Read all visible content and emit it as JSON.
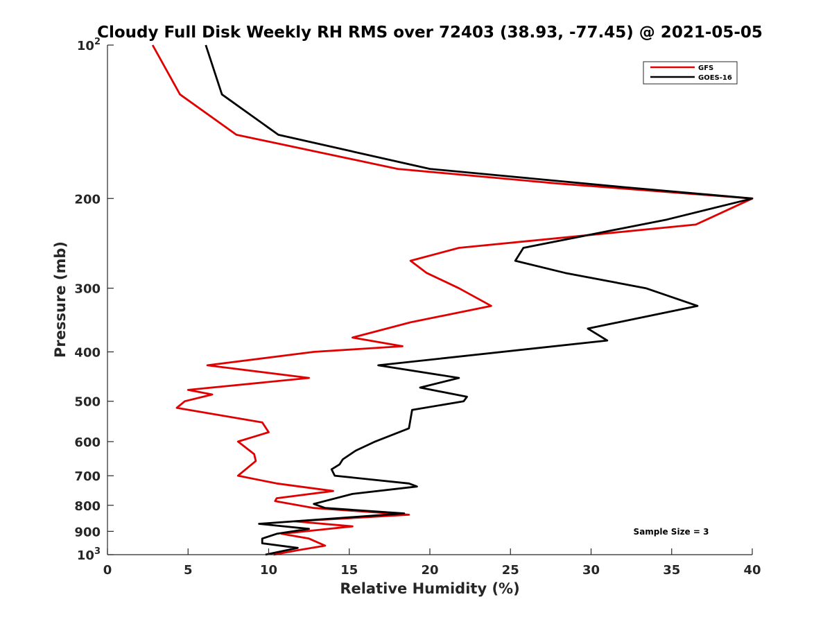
{
  "chart_data": {
    "type": "line",
    "title": "Cloudy Full Disk Weekly RH RMS over 72403 (38.93, -77.45) @ 2021-05-05",
    "xlabel": "Relative Humidity (%)",
    "ylabel": "Pressure (mb)",
    "xlim": [
      0,
      40
    ],
    "ylim": [
      100,
      1000
    ],
    "y_scale": "log",
    "y_reversed": true,
    "grid": false,
    "legend_position": "top-right",
    "x_ticks": [
      "0",
      "5",
      "10",
      "15",
      "20",
      "25",
      "30",
      "35",
      "40"
    ],
    "y_ticks": [
      {
        "value": 100,
        "label": "10",
        "sup": "2"
      },
      {
        "value": 200,
        "label": "200"
      },
      {
        "value": 300,
        "label": "300"
      },
      {
        "value": 400,
        "label": "400"
      },
      {
        "value": 500,
        "label": "500"
      },
      {
        "value": 600,
        "label": "600"
      },
      {
        "value": 700,
        "label": "700"
      },
      {
        "value": 800,
        "label": "800"
      },
      {
        "value": 900,
        "label": "900"
      },
      {
        "value": 1000,
        "label": "10",
        "sup": "3"
      }
    ],
    "annotation": "Sample Size = 3",
    "series": [
      {
        "name": "GFS",
        "color": "#e00000",
        "points": [
          [
            2.8,
            100
          ],
          [
            4.5,
            125
          ],
          [
            8,
            150
          ],
          [
            18,
            175
          ],
          [
            28,
            187
          ],
          [
            40,
            200
          ],
          [
            36.5,
            225
          ],
          [
            21.8,
            250
          ],
          [
            18.8,
            265
          ],
          [
            19.8,
            280
          ],
          [
            21.8,
            300
          ],
          [
            23.8,
            325
          ],
          [
            18.8,
            350
          ],
          [
            15.2,
            375
          ],
          [
            18.3,
            390
          ],
          [
            12.8,
            400
          ],
          [
            6.2,
            425
          ],
          [
            12.5,
            450
          ],
          [
            5.0,
            475
          ],
          [
            6.5,
            485
          ],
          [
            4.8,
            500
          ],
          [
            4.3,
            515
          ],
          [
            9.6,
            550
          ],
          [
            10,
            575
          ],
          [
            8.1,
            600
          ],
          [
            9.1,
            635
          ],
          [
            9.2,
            655
          ],
          [
            8.1,
            700
          ],
          [
            10.5,
            725
          ],
          [
            14,
            750
          ],
          [
            10.5,
            775
          ],
          [
            10.4,
            785
          ],
          [
            12.8,
            810
          ],
          [
            18.7,
            835
          ],
          [
            11.6,
            860
          ],
          [
            15.2,
            880
          ],
          [
            10.8,
            910
          ],
          [
            12.5,
            930
          ],
          [
            13.5,
            960
          ],
          [
            11.8,
            980
          ],
          [
            10.3,
            1000
          ]
        ]
      },
      {
        "name": "GOES-16",
        "color": "#000000",
        "points": [
          [
            6.1,
            100
          ],
          [
            7.1,
            125
          ],
          [
            10.6,
            150
          ],
          [
            20,
            175
          ],
          [
            32,
            190
          ],
          [
            40,
            200
          ],
          [
            34.7,
            220
          ],
          [
            25.8,
            250
          ],
          [
            25.3,
            265
          ],
          [
            28.4,
            280
          ],
          [
            33.4,
            300
          ],
          [
            36.6,
            325
          ],
          [
            29.8,
            360
          ],
          [
            31.0,
            380
          ],
          [
            16.8,
            425
          ],
          [
            21.8,
            450
          ],
          [
            19.4,
            470
          ],
          [
            22.3,
            490
          ],
          [
            22.1,
            500
          ],
          [
            18.9,
            520
          ],
          [
            18.7,
            565
          ],
          [
            16.6,
            600
          ],
          [
            15.4,
            625
          ],
          [
            14.6,
            650
          ],
          [
            14.4,
            665
          ],
          [
            13.9,
            680
          ],
          [
            14.1,
            700
          ],
          [
            18.7,
            725
          ],
          [
            19.2,
            735
          ],
          [
            15.2,
            760
          ],
          [
            12.8,
            795
          ],
          [
            13.5,
            810
          ],
          [
            18.4,
            830
          ],
          [
            9.4,
            870
          ],
          [
            12.5,
            890
          ],
          [
            10.5,
            910
          ],
          [
            9.6,
            930
          ],
          [
            9.6,
            950
          ],
          [
            11.8,
            970
          ],
          [
            9.8,
            1000
          ]
        ]
      }
    ]
  }
}
